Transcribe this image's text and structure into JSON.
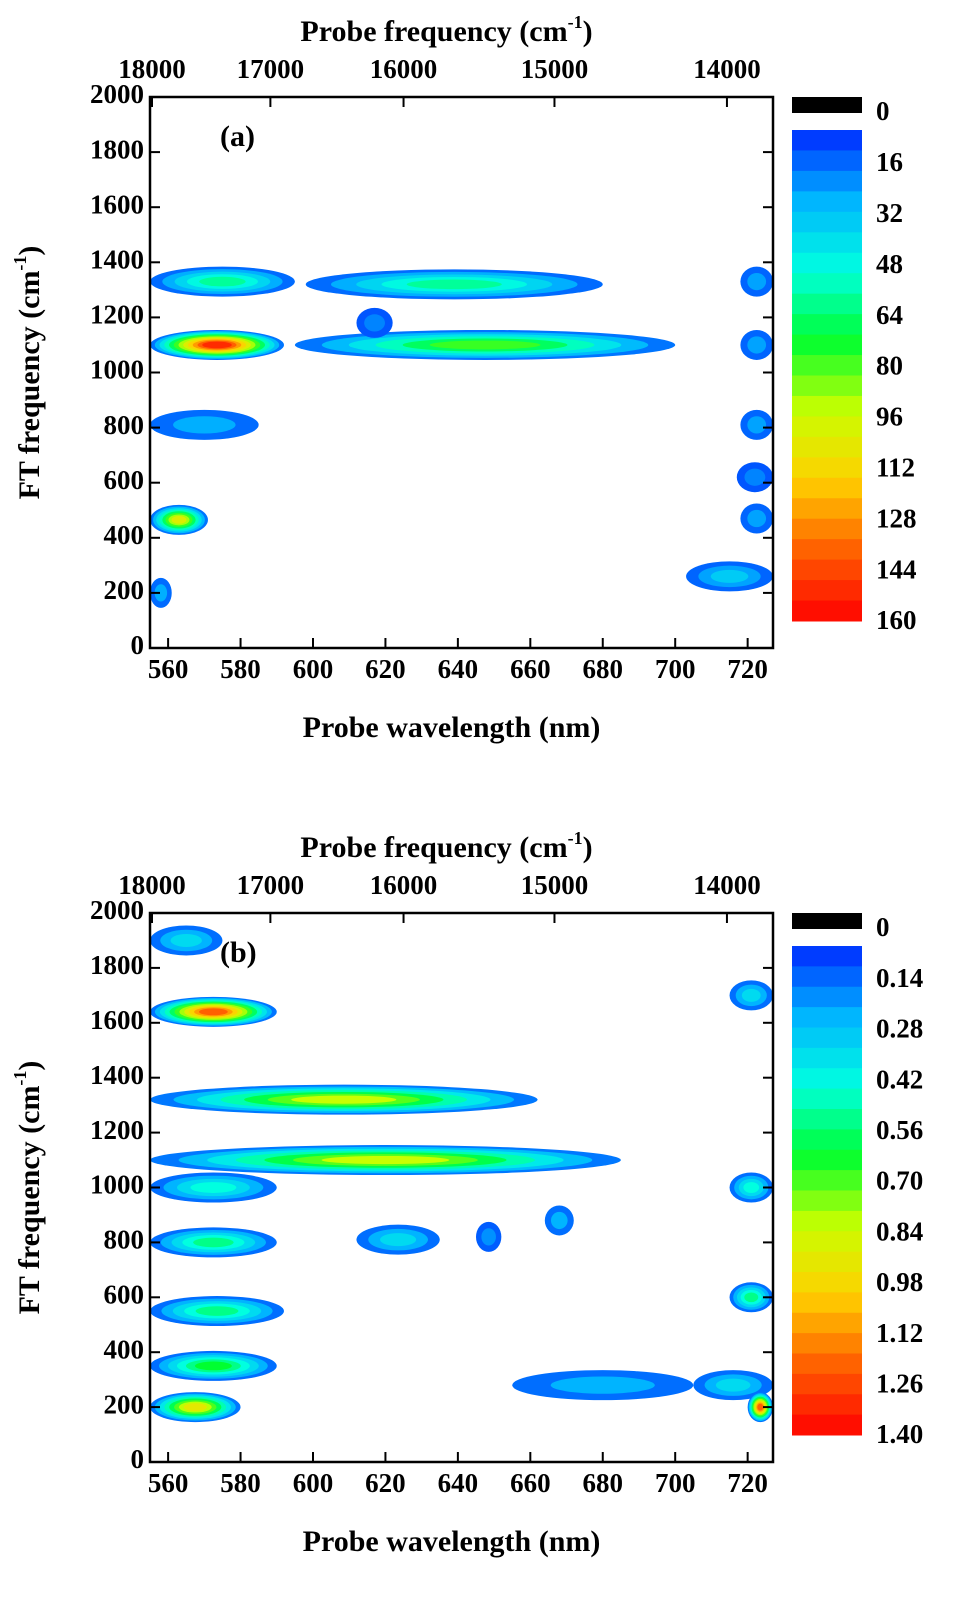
{
  "chart_data": [
    {
      "type": "contour",
      "panel_label": "(a)",
      "xlabel": "Probe wavelength (nm)",
      "ylabel": [
        "FT frequency (cm",
        "-1",
        ")"
      ],
      "x2label": [
        "Probe frequency (cm",
        "-1",
        ")"
      ],
      "xlim": [
        555,
        727
      ],
      "xticks": [
        560,
        580,
        600,
        620,
        640,
        660,
        680,
        700,
        720
      ],
      "ylim": [
        0,
        2000
      ],
      "yticks": [
        0,
        200,
        400,
        600,
        800,
        1000,
        1200,
        1400,
        1600,
        1800,
        2000
      ],
      "x2ticks": [
        18000,
        17000,
        16000,
        15000,
        14000
      ],
      "clim": [
        0,
        160
      ],
      "cticks": [
        0,
        16,
        32,
        48,
        64,
        80,
        96,
        112,
        128,
        144,
        160
      ],
      "zero_color": "#000000",
      "colormap": [
        "#0028ff",
        "#00b4ff",
        "#00ffe0",
        "#00ff30",
        "#c8ff00",
        "#ffd000",
        "#ff6000",
        "#ff0000"
      ],
      "blobs": [
        {
          "x": [
            555,
            595
          ],
          "y": 1330,
          "value": 55
        },
        {
          "x": [
            598,
            680
          ],
          "y": 1320,
          "value": 55
        },
        {
          "x": [
            555,
            592
          ],
          "y": 1100,
          "value": 150
        },
        {
          "x": [
            595,
            700
          ],
          "y": 1100,
          "value": 75
        },
        {
          "x": [
            555,
            585
          ],
          "y": 810,
          "value": 22
        },
        {
          "x": [
            555,
            571
          ],
          "y": 465,
          "value": 100
        },
        {
          "x": [
            555,
            561
          ],
          "y": 200,
          "value": 22
        },
        {
          "x": [
            703,
            727
          ],
          "y": 260,
          "value": 30
        },
        {
          "x": [
            718,
            727
          ],
          "y": 470,
          "value": 20
        },
        {
          "x": [
            718,
            727
          ],
          "y": 810,
          "value": 20
        },
        {
          "x": [
            718,
            727
          ],
          "y": 1100,
          "value": 20
        },
        {
          "x": [
            718,
            727
          ],
          "y": 1330,
          "value": 20
        },
        {
          "x": [
            717,
            727
          ],
          "y": 620,
          "value": 15
        },
        {
          "x": [
            612,
            622
          ],
          "y": 1180,
          "value": 15
        }
      ]
    },
    {
      "type": "contour",
      "panel_label": "(b)",
      "xlabel": "Probe wavelength (nm)",
      "ylabel": [
        "FT frequency (cm",
        "-1",
        ")"
      ],
      "x2label": [
        "Probe frequency (cm",
        "-1",
        ")"
      ],
      "xlim": [
        555,
        727
      ],
      "xticks": [
        560,
        580,
        600,
        620,
        640,
        660,
        680,
        700,
        720
      ],
      "ylim": [
        0,
        2000
      ],
      "yticks": [
        0,
        200,
        400,
        600,
        800,
        1000,
        1200,
        1400,
        1600,
        1800,
        2000
      ],
      "x2ticks": [
        18000,
        17000,
        16000,
        15000,
        14000
      ],
      "clim": [
        0,
        1.4
      ],
      "cticks": [
        0,
        0.14,
        0.28,
        0.42,
        0.56,
        {
          "value": 0.7,
          "label": "0.70"
        },
        0.84,
        0.98,
        1.12,
        1.26,
        {
          "value": 1.4,
          "label": "1.40"
        }
      ],
      "zero_color": "#000000",
      "colormap": [
        "#0028ff",
        "#00b4ff",
        "#00ffe0",
        "#00ff30",
        "#c8ff00",
        "#ffd000",
        "#ff6000",
        "#ff0000"
      ],
      "blobs": [
        {
          "x": [
            555,
            575
          ],
          "y": 1900,
          "value": 0.3
        },
        {
          "x": [
            555,
            590
          ],
          "y": 1640,
          "value": 1.2
        },
        {
          "x": [
            555,
            662
          ],
          "y": 1320,
          "value": 0.8
        },
        {
          "x": [
            555,
            685
          ],
          "y": 1100,
          "value": 0.8
        },
        {
          "x": [
            555,
            590
          ],
          "y": 1000,
          "value": 0.4
        },
        {
          "x": [
            555,
            590
          ],
          "y": 800,
          "value": 0.5
        },
        {
          "x": [
            555,
            592
          ],
          "y": 550,
          "value": 0.5
        },
        {
          "x": [
            555,
            590
          ],
          "y": 350,
          "value": 0.6
        },
        {
          "x": [
            555,
            580
          ],
          "y": 200,
          "value": 0.9
        },
        {
          "x": [
            612,
            635
          ],
          "y": 810,
          "value": 0.3
        },
        {
          "x": [
            655,
            705
          ],
          "y": 280,
          "value": 0.2
        },
        {
          "x": [
            705,
            727
          ],
          "y": 280,
          "value": 0.3
        },
        {
          "x": [
            715,
            727
          ],
          "y": 1000,
          "value": 0.4
        },
        {
          "x": [
            715,
            727
          ],
          "y": 600,
          "value": 0.5
        },
        {
          "x": [
            715,
            727
          ],
          "y": 1700,
          "value": 0.3
        },
        {
          "x": [
            720,
            727
          ],
          "y": 200,
          "value": 1.2
        },
        {
          "x": [
            664,
            672
          ],
          "y": 880,
          "value": 0.2
        },
        {
          "x": [
            645,
            652
          ],
          "y": 820,
          "value": 0.15
        }
      ]
    }
  ]
}
